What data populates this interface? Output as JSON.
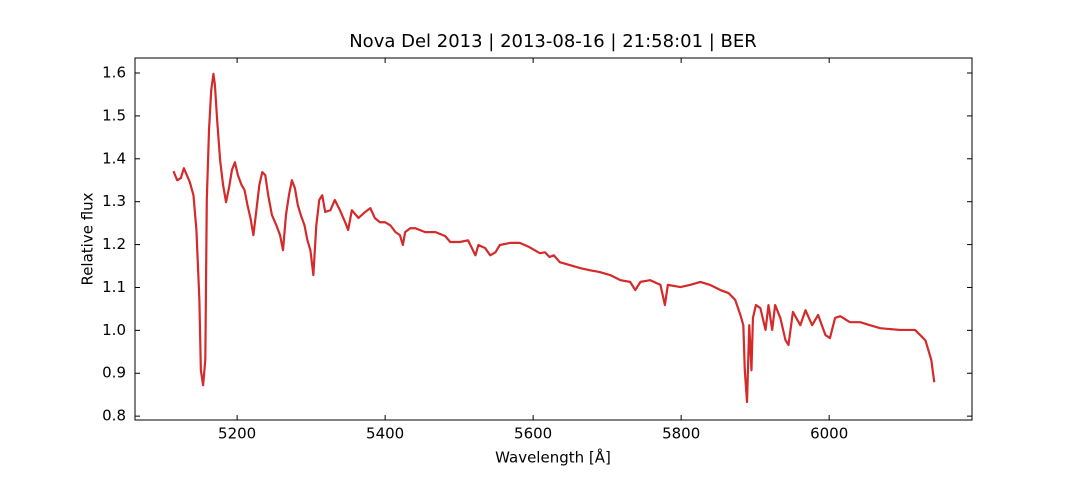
{
  "chart_data": {
    "type": "line",
    "title": "Nova Del 2013 | 2013-08-16 | 21:58:01 | BER",
    "x_label": "Wavelength [Å]",
    "y_label": "Relative flux",
    "color": "#d42a2a",
    "x": [
      5114,
      5119,
      5124,
      5128,
      5132,
      5136,
      5141,
      5145,
      5149,
      5151,
      5154,
      5157,
      5159,
      5162,
      5165,
      5168,
      5170,
      5173,
      5177,
      5181,
      5185,
      5189,
      5193,
      5197,
      5201,
      5206,
      5210,
      5214,
      5218,
      5222,
      5226,
      5230,
      5234,
      5238,
      5242,
      5247,
      5253,
      5258,
      5262,
      5266,
      5270,
      5274,
      5278,
      5282,
      5286,
      5291,
      5295,
      5299,
      5303,
      5307,
      5311,
      5315,
      5319,
      5326,
      5332,
      5339,
      5346,
      5350,
      5355,
      5364,
      5373,
      5380,
      5386,
      5393,
      5400,
      5407,
      5414,
      5420,
      5424,
      5427,
      5434,
      5441,
      5454,
      5468,
      5481,
      5488,
      5501,
      5512,
      5522,
      5526,
      5535,
      5542,
      5549,
      5555,
      5569,
      5582,
      5595,
      5609,
      5616,
      5622,
      5628,
      5636,
      5650,
      5664,
      5677,
      5690,
      5704,
      5718,
      5731,
      5738,
      5745,
      5758,
      5772,
      5778,
      5782,
      5799,
      5812,
      5826,
      5839,
      5853,
      5864,
      5873,
      5880,
      5884,
      5886,
      5889,
      5892,
      5895,
      5897,
      5901,
      5907,
      5914,
      5918,
      5923,
      5927,
      5934,
      5941,
      5945,
      5951,
      5961,
      5968,
      5977,
      5985,
      5995,
      6001,
      6008,
      6015,
      6028,
      6042,
      6055,
      6069,
      6096,
      6116,
      6123,
      6130,
      6134,
      6138,
      6142
    ],
    "values": [
      1.371,
      1.35,
      1.355,
      1.378,
      1.362,
      1.346,
      1.315,
      1.234,
      1.071,
      0.907,
      0.872,
      0.931,
      1.304,
      1.467,
      1.56,
      1.598,
      1.572,
      1.49,
      1.397,
      1.339,
      1.299,
      1.332,
      1.374,
      1.392,
      1.362,
      1.339,
      1.327,
      1.292,
      1.262,
      1.222,
      1.28,
      1.339,
      1.369,
      1.362,
      1.315,
      1.269,
      1.245,
      1.222,
      1.187,
      1.269,
      1.315,
      1.35,
      1.332,
      1.292,
      1.269,
      1.245,
      1.21,
      1.187,
      1.129,
      1.245,
      1.304,
      1.315,
      1.276,
      1.28,
      1.304,
      1.28,
      1.252,
      1.234,
      1.28,
      1.262,
      1.276,
      1.285,
      1.262,
      1.252,
      1.252,
      1.245,
      1.229,
      1.222,
      1.199,
      1.229,
      1.238,
      1.238,
      1.229,
      1.229,
      1.22,
      1.206,
      1.206,
      1.21,
      1.175,
      1.199,
      1.192,
      1.175,
      1.182,
      1.199,
      1.204,
      1.204,
      1.194,
      1.18,
      1.182,
      1.171,
      1.175,
      1.159,
      1.152,
      1.145,
      1.14,
      1.136,
      1.129,
      1.117,
      1.113,
      1.094,
      1.113,
      1.117,
      1.106,
      1.059,
      1.106,
      1.101,
      1.106,
      1.113,
      1.106,
      1.094,
      1.087,
      1.071,
      1.036,
      1.012,
      0.907,
      0.833,
      1.012,
      0.907,
      1.029,
      1.059,
      1.052,
      1.001,
      1.059,
      1.001,
      1.059,
      1.029,
      0.977,
      0.966,
      1.043,
      1.012,
      1.047,
      1.012,
      1.036,
      0.989,
      0.982,
      1.029,
      1.033,
      1.019,
      1.019,
      1.012,
      1.005,
      1.001,
      1.001,
      0.989,
      0.977,
      0.954,
      0.931,
      0.879
    ],
    "xlim": [
      5062,
      6193
    ],
    "ylim": [
      0.791,
      1.635
    ],
    "xticks": [
      5200,
      5400,
      5600,
      5800,
      6000
    ],
    "yticks": [
      0.8,
      0.9,
      {
        "value": 1,
        "label": "1.0"
      },
      1.1,
      1.2,
      1.3,
      1.4,
      1.5,
      1.6
    ],
    "grid": false
  }
}
